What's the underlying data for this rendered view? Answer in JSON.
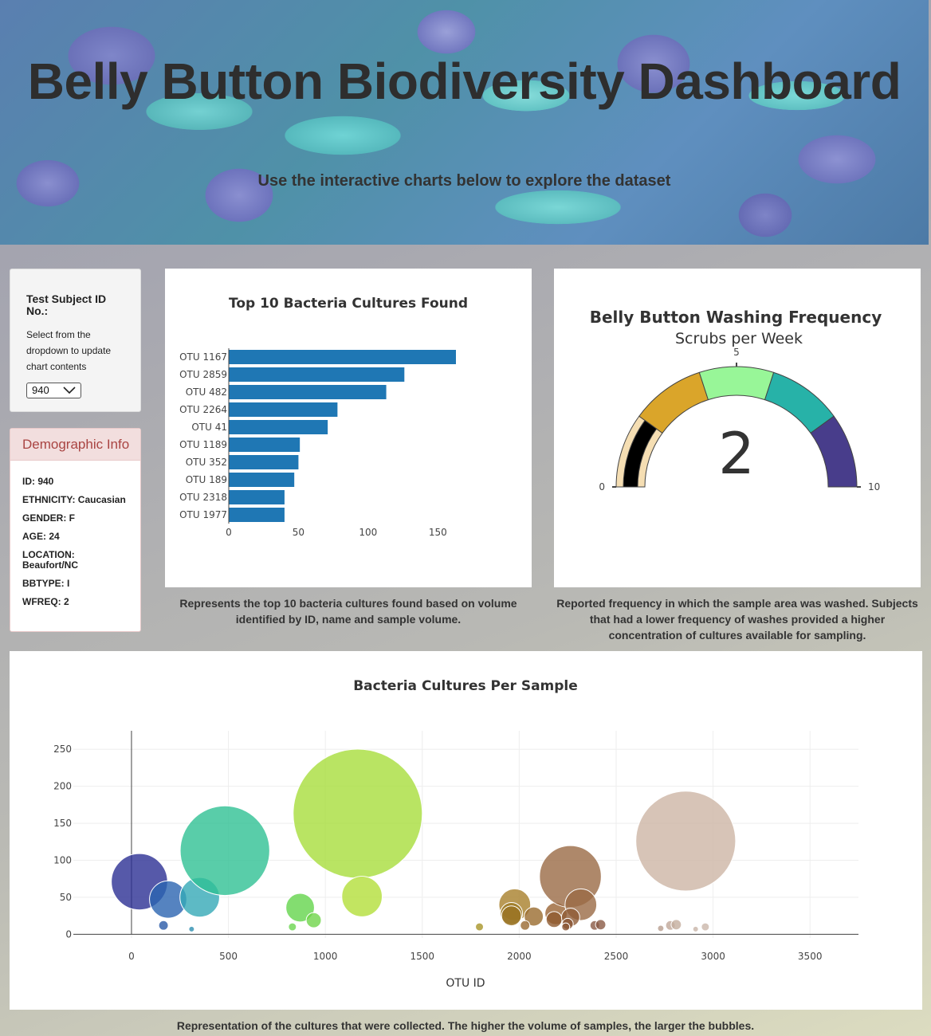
{
  "header": {
    "title": "Belly Button Biodiversity Dashboard",
    "subtitle": "Use the interactive charts below to explore the dataset"
  },
  "selector": {
    "label": "Test Subject ID No.:",
    "hint": "Select from the dropdown to update chart contents",
    "selected": "940"
  },
  "demographics": {
    "title": "Demographic Info",
    "items": [
      "ID: 940",
      "ETHNICITY: Caucasian",
      "GENDER: F",
      "AGE: 24",
      "LOCATION: Beaufort/NC",
      "BBTYPE: I",
      "WFREQ: 2"
    ]
  },
  "captions": {
    "bar": "Represents the top 10 bacteria cultures found based on volume identified by ID, name and sample volume.",
    "gauge": "Reported frequency in which the sample area was washed. Subjects that had a lower frequency of washes provided a higher concentration of cultures available for sampling.",
    "bubble": "Representation of the cultures that were collected. The higher the volume of samples, the larger the bubbles."
  },
  "chart_data": [
    {
      "type": "bar",
      "orientation": "horizontal",
      "title": "Top 10 Bacteria Cultures Found",
      "categories": [
        "OTU 1167",
        "OTU 2859",
        "OTU 482",
        "OTU 2264",
        "OTU 41",
        "OTU 1189",
        "OTU 352",
        "OTU 189",
        "OTU 2318",
        "OTU 1977"
      ],
      "values": [
        163,
        126,
        113,
        78,
        71,
        51,
        50,
        47,
        40,
        40
      ],
      "xlim": [
        0,
        163
      ],
      "xticks": [
        0,
        50,
        100,
        150
      ],
      "color": "#1f77b4"
    },
    {
      "type": "gauge",
      "title": "Belly Button Washing Frequency",
      "subtitle": "Scrubs per Week",
      "value": 2,
      "range": [
        0,
        10
      ],
      "ticks": [
        0,
        5,
        10
      ],
      "bands": [
        {
          "from": 0,
          "to": 2,
          "color": "#f5deb3"
        },
        {
          "from": 2,
          "to": 4,
          "color": "#daa52a"
        },
        {
          "from": 4,
          "to": 6,
          "color": "#98f698"
        },
        {
          "from": 6,
          "to": 8,
          "color": "#27b2a8"
        },
        {
          "from": 8,
          "to": 10,
          "color": "#483d8b"
        }
      ],
      "bar_color": "#000000"
    },
    {
      "type": "scatter",
      "title": "Bacteria Cultures Per Sample",
      "xlabel": "OTU ID",
      "ylabel": "",
      "xlim": [
        -300,
        3750
      ],
      "ylim": [
        -5,
        275
      ],
      "xticks": [
        0,
        500,
        1000,
        1500,
        2000,
        2500,
        3000,
        3500
      ],
      "yticks": [
        0,
        50,
        100,
        150,
        200,
        250
      ],
      "grid": true,
      "points": [
        {
          "x": 41,
          "y": 71,
          "c": "#2c2f94"
        },
        {
          "x": 189,
          "y": 47,
          "c": "#2a64b0"
        },
        {
          "x": 165,
          "y": 12,
          "c": "#2a5aa8"
        },
        {
          "x": 352,
          "y": 50,
          "c": "#34a9b6"
        },
        {
          "x": 310,
          "y": 7,
          "c": "#2e8fb0"
        },
        {
          "x": 482,
          "y": 113,
          "c": "#2fc093"
        },
        {
          "x": 870,
          "y": 36,
          "c": "#64d44c"
        },
        {
          "x": 940,
          "y": 19,
          "c": "#6fd54a"
        },
        {
          "x": 830,
          "y": 10,
          "c": "#6cd650"
        },
        {
          "x": 1167,
          "y": 163,
          "c": "#a8dd3c"
        },
        {
          "x": 1189,
          "y": 51,
          "c": "#b3df3a"
        },
        {
          "x": 1795,
          "y": 10,
          "c": "#a89528"
        },
        {
          "x": 1977,
          "y": 40,
          "c": "#a8802a"
        },
        {
          "x": 1960,
          "y": 28,
          "c": "#9e7a25"
        },
        {
          "x": 1960,
          "y": 25,
          "c": "#9a7324"
        },
        {
          "x": 2075,
          "y": 24,
          "c": "#9a6b2e"
        },
        {
          "x": 2030,
          "y": 12,
          "c": "#9a6a32"
        },
        {
          "x": 2190,
          "y": 28,
          "c": "#9a6434"
        },
        {
          "x": 2180,
          "y": 20,
          "c": "#8f5a30"
        },
        {
          "x": 2264,
          "y": 78,
          "c": "#9a6a45"
        },
        {
          "x": 2318,
          "y": 40,
          "c": "#9a6a45"
        },
        {
          "x": 2265,
          "y": 23,
          "c": "#8f5b36"
        },
        {
          "x": 2250,
          "y": 14,
          "c": "#8a5535"
        },
        {
          "x": 2240,
          "y": 10,
          "c": "#8a5535"
        },
        {
          "x": 2390,
          "y": 12,
          "c": "#8a5a45"
        },
        {
          "x": 2420,
          "y": 13,
          "c": "#8a5a45"
        },
        {
          "x": 2730,
          "y": 8,
          "c": "#b89e8e"
        },
        {
          "x": 2780,
          "y": 12,
          "c": "#c0a898"
        },
        {
          "x": 2810,
          "y": 13,
          "c": "#c4ae9e"
        },
        {
          "x": 2859,
          "y": 126,
          "c": "#cdb5a5"
        },
        {
          "x": 2910,
          "y": 7,
          "c": "#c8b4a8"
        },
        {
          "x": 2960,
          "y": 10,
          "c": "#cbb6aa"
        }
      ],
      "max_value": 163
    }
  ]
}
